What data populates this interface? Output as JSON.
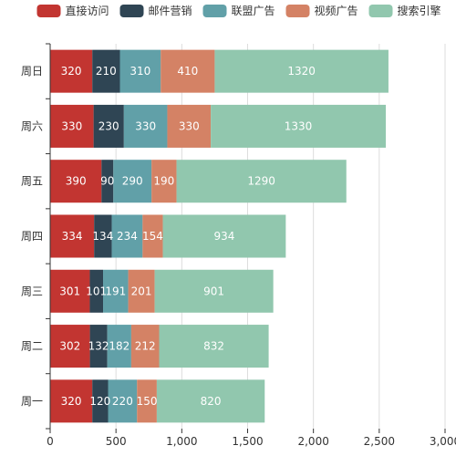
{
  "chart_data": {
    "type": "bar",
    "orientation": "horizontal",
    "stacked": true,
    "categories": [
      "周一",
      "周二",
      "周三",
      "周四",
      "周五",
      "周六",
      "周日"
    ],
    "series": [
      {
        "name": "直接访问",
        "color": "#c23531",
        "values": [
          320,
          302,
          301,
          334,
          390,
          330,
          320
        ]
      },
      {
        "name": "邮件营销",
        "color": "#2f4554",
        "values": [
          120,
          132,
          101,
          134,
          90,
          230,
          210
        ]
      },
      {
        "name": "联盟广告",
        "color": "#61a0a8",
        "values": [
          220,
          182,
          191,
          234,
          290,
          330,
          310
        ]
      },
      {
        "name": "视频广告",
        "color": "#d48265",
        "values": [
          150,
          212,
          201,
          154,
          190,
          330,
          410
        ]
      },
      {
        "name": "搜索引擎",
        "color": "#91c7ae",
        "values": [
          820,
          832,
          901,
          934,
          1290,
          1330,
          1320
        ]
      }
    ],
    "xlim": [
      0,
      3000
    ],
    "x_ticks": [
      "0",
      "500",
      "1,000",
      "1,500",
      "2,000",
      "2,500",
      "3,000"
    ],
    "grid": true,
    "legend_position": "top",
    "data_labels": true
  }
}
